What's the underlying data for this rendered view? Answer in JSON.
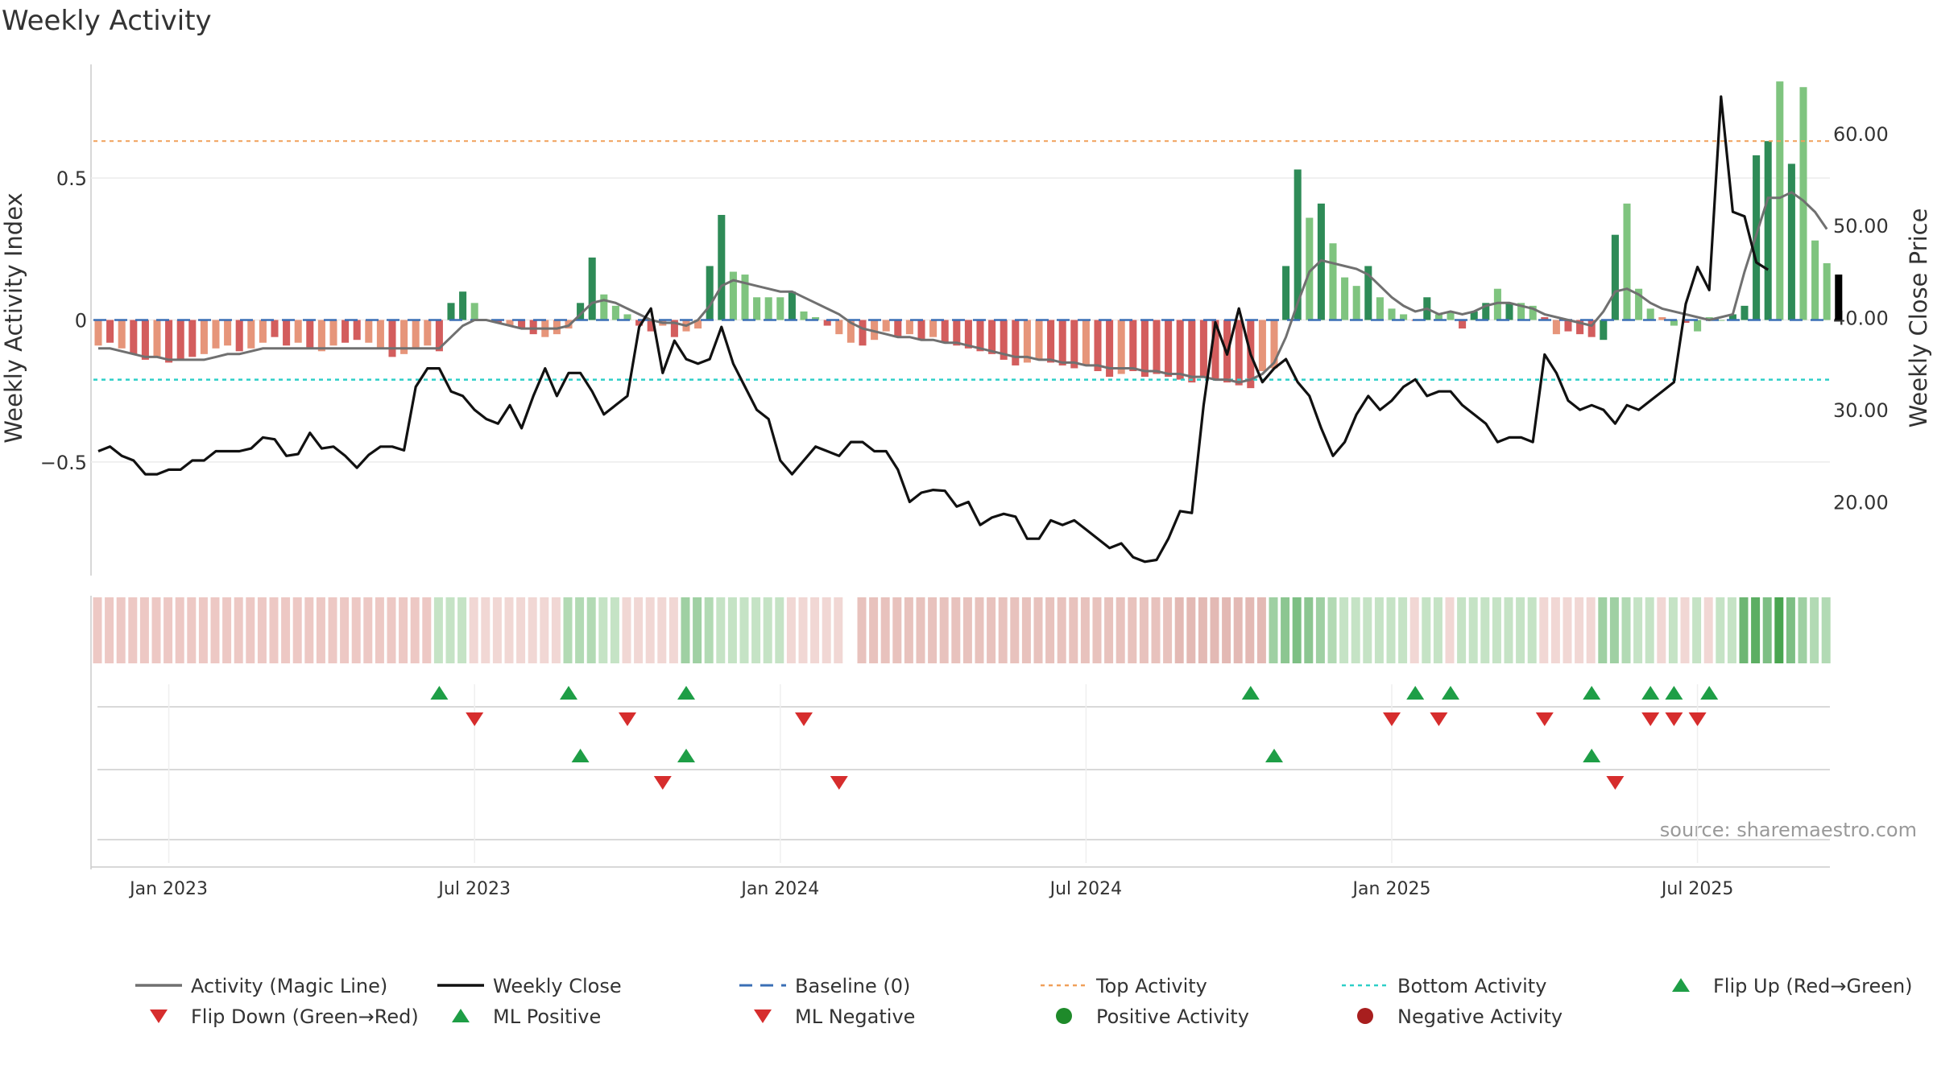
{
  "chart_data": {
    "type": "bar",
    "title": "Weekly Activity",
    "ylabel_left": "Weekly Activity Index",
    "ylabel_right": "Weekly Close Price",
    "source": "source: sharemaestro.com",
    "x_ticks": [
      "Jan 2023",
      "Jul 2023",
      "Jan 2024",
      "Jul 2024",
      "Jan 2025",
      "Jul 2025"
    ],
    "x_tick_weeks": [
      6,
      32,
      58,
      84,
      110,
      136
    ],
    "left_axis": {
      "range": [
        -0.9,
        0.9
      ],
      "ticks": [
        0.5,
        0,
        -0.5
      ],
      "tick_labels": [
        "0.5",
        "0",
        "−0.5"
      ]
    },
    "right_axis": {
      "range": [
        12,
        67.5
      ],
      "ticks": [
        60,
        50,
        40,
        30,
        20
      ],
      "tick_labels": [
        "60.00",
        "50.00",
        "40.00",
        "30.00",
        "20.00"
      ]
    },
    "top_activity_level": 0.63,
    "bottom_activity_level": -0.21,
    "activity_index": [
      -0.09,
      -0.08,
      -0.1,
      -0.12,
      -0.14,
      -0.13,
      -0.15,
      -0.14,
      -0.13,
      -0.12,
      -0.1,
      -0.09,
      -0.11,
      -0.1,
      -0.08,
      -0.06,
      -0.09,
      -0.08,
      -0.1,
      -0.11,
      -0.09,
      -0.08,
      -0.07,
      -0.08,
      -0.1,
      -0.13,
      -0.12,
      -0.1,
      -0.09,
      -0.11,
      0.06,
      0.1,
      0.06,
      0,
      -0.01,
      -0.02,
      -0.03,
      -0.05,
      -0.06,
      -0.05,
      -0.03,
      0.06,
      0.22,
      0.09,
      0.05,
      0.02,
      -0.02,
      -0.04,
      -0.02,
      -0.06,
      -0.04,
      -0.03,
      0.19,
      0.37,
      0.17,
      0.16,
      0.08,
      0.08,
      0.08,
      0.1,
      0.03,
      0.01,
      -0.02,
      -0.05,
      -0.08,
      -0.09,
      -0.07,
      -0.04,
      -0.06,
      -0.05,
      -0.07,
      -0.06,
      -0.08,
      -0.09,
      -0.1,
      -0.11,
      -0.12,
      -0.14,
      -0.16,
      -0.15,
      -0.14,
      -0.15,
      -0.16,
      -0.17,
      -0.16,
      -0.18,
      -0.2,
      -0.19,
      -0.18,
      -0.2,
      -0.19,
      -0.2,
      -0.21,
      -0.22,
      -0.2,
      -0.21,
      -0.22,
      -0.23,
      -0.24,
      -0.18,
      -0.17,
      0.19,
      0.53,
      0.36,
      0.41,
      0.27,
      0.15,
      0.12,
      0.19,
      0.08,
      0.04,
      0.02,
      0,
      0.08,
      0.02,
      0.03,
      -0.03,
      0.03,
      0.06,
      0.11,
      0.06,
      0.06,
      0.05,
      0.01,
      -0.05,
      -0.04,
      -0.05,
      -0.06,
      -0.07,
      0.3,
      0.41,
      0.11,
      0.04,
      0.01,
      -0.02,
      -0.01,
      -0.04,
      0.01,
      0,
      0.02,
      0.05,
      0.58,
      0.63,
      0.84,
      0.55,
      0.82,
      0.28,
      0.2,
      0.16
    ],
    "activity_colors": [
      "#e6957a",
      "#d35d5d",
      "#e6957a",
      "#d35d5d",
      "#d35d5d",
      "#e6957a",
      "#d35d5d",
      "#d35d5d",
      "#d35d5d",
      "#e6957a",
      "#e6957a",
      "#e6957a",
      "#d35d5d",
      "#e6957a",
      "#e6957a",
      "#d35d5d",
      "#d35d5d",
      "#e6957a",
      "#d35d5d",
      "#e6957a",
      "#e6957a",
      "#d35d5d",
      "#d35d5d",
      "#e6957a",
      "#e6957a",
      "#d35d5d",
      "#e6957a",
      "#e6957a",
      "#e6957a",
      "#d35d5d",
      "#2e8b57",
      "#2e8b57",
      "#7fc47f",
      "#3a6fb5",
      "#d35d5d",
      "#e6957a",
      "#d35d5d",
      "#d35d5d",
      "#e6957a",
      "#e6957a",
      "#e6957a",
      "#2e8b57",
      "#2e8b57",
      "#7fc47f",
      "#7fc47f",
      "#7fc47f",
      "#d35d5d",
      "#d35d5d",
      "#e6957a",
      "#d35d5d",
      "#e6957a",
      "#e6957a",
      "#2e8b57",
      "#2e8b57",
      "#7fc47f",
      "#7fc47f",
      "#7fc47f",
      "#7fc47f",
      "#7fc47f",
      "#2e8b57",
      "#7fc47f",
      "#7fc47f",
      "#d35d5d",
      "#e6957a",
      "#e6957a",
      "#d35d5d",
      "#e6957a",
      "#e6957a",
      "#d35d5d",
      "#e6957a",
      "#d35d5d",
      "#e6957a",
      "#d35d5d",
      "#d35d5d",
      "#d35d5d",
      "#d35d5d",
      "#d35d5d",
      "#d35d5d",
      "#d35d5d",
      "#e6957a",
      "#e6957a",
      "#d35d5d",
      "#d35d5d",
      "#d35d5d",
      "#e6957a",
      "#d35d5d",
      "#d35d5d",
      "#e6957a",
      "#d35d5d",
      "#d35d5d",
      "#d35d5d",
      "#d35d5d",
      "#d35d5d",
      "#d35d5d",
      "#d35d5d",
      "#d35d5d",
      "#d35d5d",
      "#d35d5d",
      "#d35d5d",
      "#e6957a",
      "#e6957a",
      "#2e8b57",
      "#2e8b57",
      "#7fc47f",
      "#2e8b57",
      "#7fc47f",
      "#7fc47f",
      "#7fc47f",
      "#2e8b57",
      "#7fc47f",
      "#7fc47f",
      "#7fc47f",
      "#d35d5d",
      "#2e8b57",
      "#7fc47f",
      "#7fc47f",
      "#d35d5d",
      "#2e8b57",
      "#2e8b57",
      "#7fc47f",
      "#2e8b57",
      "#7fc47f",
      "#7fc47f",
      "#d35d5d",
      "#e6957a",
      "#d35d5d",
      "#d35d5d",
      "#d35d5d",
      "#2e8b57",
      "#2e8b57",
      "#7fc47f",
      "#7fc47f",
      "#7fc47f",
      "#e6957a",
      "#7fc47f",
      "#d35d5d",
      "#7fc47f",
      "#7fc47f",
      "#7fc47f",
      "#2e8b57",
      "#2e8b57",
      "#2e8b57",
      "#2e8b57",
      "#7fc47f",
      "#2e8b57",
      "#7fc47f",
      "#7fc47f",
      "#7fc47f"
    ],
    "magic_line": [
      -0.1,
      -0.1,
      -0.11,
      -0.12,
      -0.13,
      -0.13,
      -0.14,
      -0.14,
      -0.14,
      -0.14,
      -0.13,
      -0.12,
      -0.12,
      -0.11,
      -0.1,
      -0.1,
      -0.1,
      -0.1,
      -0.1,
      -0.1,
      -0.1,
      -0.1,
      -0.1,
      -0.1,
      -0.1,
      -0.1,
      -0.1,
      -0.1,
      -0.1,
      -0.1,
      -0.06,
      -0.02,
      0,
      0,
      -0.01,
      -0.02,
      -0.03,
      -0.03,
      -0.03,
      -0.03,
      -0.02,
      0.02,
      0.06,
      0.07,
      0.06,
      0.04,
      0.02,
      0,
      -0.01,
      -0.01,
      -0.02,
      0,
      0.05,
      0.12,
      0.14,
      0.13,
      0.12,
      0.11,
      0.1,
      0.1,
      0.08,
      0.06,
      0.04,
      0.02,
      -0.01,
      -0.03,
      -0.04,
      -0.05,
      -0.06,
      -0.06,
      -0.07,
      -0.07,
      -0.08,
      -0.08,
      -0.09,
      -0.1,
      -0.11,
      -0.12,
      -0.13,
      -0.13,
      -0.14,
      -0.14,
      -0.15,
      -0.15,
      -0.16,
      -0.16,
      -0.17,
      -0.17,
      -0.17,
      -0.18,
      -0.18,
      -0.19,
      -0.19,
      -0.2,
      -0.2,
      -0.21,
      -0.21,
      -0.22,
      -0.21,
      -0.19,
      -0.15,
      -0.06,
      0.06,
      0.17,
      0.21,
      0.2,
      0.19,
      0.18,
      0.16,
      0.12,
      0.08,
      0.05,
      0.03,
      0.04,
      0.02,
      0.03,
      0.02,
      0.03,
      0.05,
      0.06,
      0.06,
      0.05,
      0.04,
      0.02,
      0.01,
      0,
      -0.01,
      -0.02,
      0.03,
      0.1,
      0.11,
      0.09,
      0.06,
      0.04,
      0.03,
      0.02,
      0.01,
      0,
      0.01,
      0.02,
      0.17,
      0.3,
      0.43,
      0.43,
      0.45,
      0.42,
      0.38,
      0.32
    ],
    "weekly_close": [
      25.5,
      26,
      25,
      24.5,
      23,
      23,
      23.5,
      23.5,
      24.5,
      24.5,
      25.5,
      25.5,
      25.5,
      25.8,
      27,
      26.8,
      25,
      25.2,
      27.5,
      25.8,
      26,
      25,
      23.7,
      25.1,
      26,
      26,
      25.6,
      32.5,
      34.5,
      34.5,
      32,
      31.5,
      30,
      29,
      28.5,
      30.5,
      28,
      31.5,
      34.5,
      31.5,
      34,
      34,
      32,
      29.5,
      30.5,
      31.5,
      39,
      41,
      34,
      37.5,
      35.5,
      35,
      35.5,
      39,
      35,
      32.5,
      30,
      29,
      24.5,
      23,
      24.5,
      26,
      25.5,
      25,
      26.5,
      26.5,
      25.5,
      25.5,
      23.5,
      20,
      21,
      21.3,
      21.2,
      19.5,
      20,
      17.5,
      18.3,
      18.7,
      18.4,
      16,
      16,
      18,
      17.5,
      18,
      17,
      16,
      15,
      15.5,
      14,
      13.5,
      13.7,
      16,
      19,
      18.8,
      30.5,
      39.5,
      36,
      41,
      36,
      33,
      34.5,
      35.5,
      33,
      31.5,
      28,
      25,
      26.5,
      29.5,
      31.5,
      30,
      31,
      32.5,
      33.3,
      31.5,
      32,
      32,
      30.5,
      29.5,
      28.5,
      26.5,
      27,
      27,
      26.5,
      36,
      34,
      31,
      30,
      30.5,
      30,
      28.5,
      30.5,
      30,
      31,
      32,
      33,
      41.5,
      45.5,
      43,
      64,
      51.5,
      51,
      46,
      45.2
    ],
    "signal_strip_colors": [
      "#edc8c4",
      "#edc8c4",
      "#edc8c4",
      "#edc8c4",
      "#edc8c4",
      "#edc8c4",
      "#edc8c4",
      "#edc8c4",
      "#edc8c4",
      "#edc8c4",
      "#edc8c4",
      "#edc8c4",
      "#edc8c4",
      "#edc8c4",
      "#edc8c4",
      "#edc8c4",
      "#edc8c4",
      "#edc8c4",
      "#edc8c4",
      "#edc8c4",
      "#edc8c4",
      "#edc8c4",
      "#edc8c4",
      "#edc8c4",
      "#edc8c4",
      "#edc8c4",
      "#edc8c4",
      "#edc8c4",
      "#edc8c4",
      "#c5e3c5",
      "#c5e3c5",
      "#c5e3c5",
      "#f1d7d4",
      "#f1d7d4",
      "#f1d7d4",
      "#f1d7d4",
      "#f1d7d4",
      "#f1d7d4",
      "#f1d7d4",
      "#f1d7d4",
      "#b2dab4",
      "#b2dab4",
      "#b2dab4",
      "#c5e3c5",
      "#c5e3c5",
      "#f1d7d4",
      "#f1d7d4",
      "#f1d7d4",
      "#f1d7d4",
      "#f1d7d4",
      "#9fd0a3",
      "#9fd0a3",
      "#b2dab4",
      "#c5e3c5",
      "#c5e3c5",
      "#c5e3c5",
      "#c5e3c5",
      "#c5e3c5",
      "#c5e3c5",
      "#f1d7d4",
      "#f1d7d4",
      "#f1d7d4",
      "#f1d7d4",
      "#f1d7d4",
      "#ffffff",
      "#e8c2bd",
      "#e8c2bd",
      "#e8c2bd",
      "#e8c2bd",
      "#e8c2bd",
      "#e8c2bd",
      "#e8c2bd",
      "#e8c2bd",
      "#e8c2bd",
      "#e8c2bd",
      "#e8c2bd",
      "#e8c2bd",
      "#e8c2bd",
      "#e8c2bd",
      "#e8c2bd",
      "#e8c2bd",
      "#e8c2bd",
      "#e8c2bd",
      "#e8c2bd",
      "#e8c2bd",
      "#e8c2bd",
      "#e8c2bd",
      "#e8c2bd",
      "#e8c2bd",
      "#e8c2bd",
      "#e8c2bd",
      "#e8c2bd",
      "#e3b9b4",
      "#e3b9b4",
      "#e3b9b4",
      "#e3b9b4",
      "#e3b9b4",
      "#e3b9b4",
      "#e3b9b4",
      "#e3b9b4",
      "#9fd0a3",
      "#8cc691",
      "#7dbf84",
      "#8cc691",
      "#9fd0a3",
      "#b2dab4",
      "#c5e3c5",
      "#c5e3c5",
      "#c5e3c5",
      "#c5e3c5",
      "#c5e3c5",
      "#c5e3c5",
      "#f1d7d4",
      "#c5e3c5",
      "#c5e3c5",
      "#f1d7d4",
      "#c5e3c5",
      "#c5e3c5",
      "#c5e3c5",
      "#c5e3c5",
      "#c5e3c5",
      "#c5e3c5",
      "#c5e3c5",
      "#f1d7d4",
      "#f1d7d4",
      "#f1d7d4",
      "#f1d7d4",
      "#f1d7d4",
      "#9fd0a3",
      "#9fd0a3",
      "#b2dab4",
      "#c5e3c5",
      "#c5e3c5",
      "#f1d7d4",
      "#c5e3c5",
      "#f1d7d4",
      "#c5e3c5",
      "#f1d7d4",
      "#c5e3c5",
      "#c5e3c5",
      "#6db673",
      "#5cae63",
      "#7dbf84",
      "#49a550",
      "#7dbf84",
      "#9fd0a3",
      "#b2dab4",
      "#b2dab4"
    ],
    "flip_up_weeks": [
      29,
      40,
      50,
      98,
      112,
      115,
      127,
      132,
      134,
      137
    ],
    "flip_down_weeks": [
      32,
      45,
      60,
      110,
      114,
      123,
      132,
      134,
      136
    ],
    "ml_positive_weeks": [
      41,
      50,
      100,
      127
    ],
    "ml_negative_weeks": [
      48,
      63,
      129
    ],
    "legend": [
      {
        "label": "Activity (Magic Line)",
        "kind": "line",
        "color": "#707070"
      },
      {
        "label": "Weekly Close",
        "kind": "line",
        "color": "#111111"
      },
      {
        "label": "Baseline (0)",
        "kind": "dash",
        "color": "#3a6fb5"
      },
      {
        "label": "Top Activity",
        "kind": "dot-line",
        "color": "#f0a05a"
      },
      {
        "label": "Bottom Activity",
        "kind": "dot-line",
        "color": "#2ecfc8"
      },
      {
        "label": "Flip Up (Red→Green)",
        "kind": "tri-up",
        "color": "#1e9e46"
      },
      {
        "label": "Flip Down (Green→Red)",
        "kind": "tri-down",
        "color": "#d62d2d"
      },
      {
        "label": "ML Positive",
        "kind": "tri-up",
        "color": "#1e9e46"
      },
      {
        "label": "ML Negative",
        "kind": "tri-down",
        "color": "#d62d2d"
      },
      {
        "label": "Positive Activity",
        "kind": "circle",
        "color": "#1e8a2a"
      },
      {
        "label": "Negative Activity",
        "kind": "circle",
        "color": "#a81e1e"
      }
    ]
  }
}
